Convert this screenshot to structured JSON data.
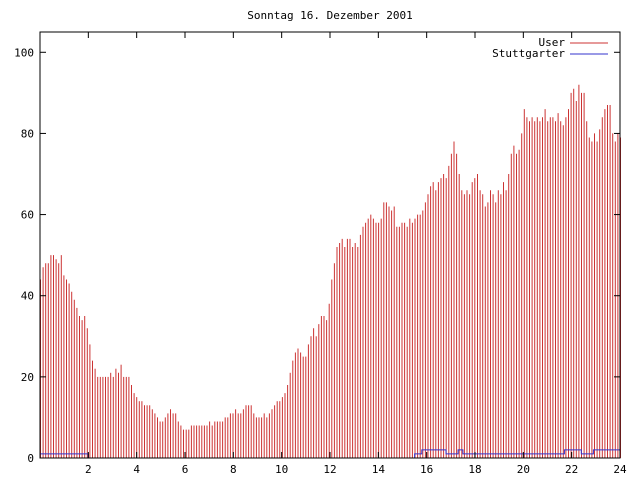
{
  "chart_data": {
    "type": "bar",
    "title": "Sonntag 16. Dezember 2001",
    "xlabel": "",
    "ylabel": "",
    "xlim": [
      0,
      24
    ],
    "ylim": [
      0,
      105
    ],
    "x_ticks": [
      2,
      4,
      6,
      8,
      10,
      12,
      14,
      16,
      18,
      20,
      22,
      24
    ],
    "y_ticks": [
      0,
      20,
      40,
      60,
      80,
      100
    ],
    "grid": false,
    "legend_position": "top-right",
    "colors": {
      "user": "#cc3333",
      "stuttgarter": "#3333cc",
      "axis": "#000000"
    },
    "series": [
      {
        "name": "User",
        "style": "impulses",
        "values": [
          44,
          47,
          48,
          48,
          50,
          50,
          49,
          48,
          50,
          45,
          44,
          43,
          41,
          39,
          37,
          35,
          34,
          35,
          32,
          28,
          24,
          22,
          20,
          20,
          20,
          20,
          20,
          21,
          20,
          22,
          21,
          23,
          20,
          20,
          20,
          18,
          16,
          15,
          14,
          14,
          13,
          13,
          13,
          12,
          11,
          10,
          9,
          9,
          10,
          11,
          12,
          11,
          11,
          9,
          8,
          7,
          7,
          7,
          8,
          8,
          8,
          8,
          8,
          8,
          8,
          9,
          8,
          9,
          9,
          9,
          9,
          10,
          10,
          11,
          11,
          12,
          11,
          11,
          12,
          13,
          13,
          13,
          11,
          10,
          10,
          10,
          11,
          10,
          11,
          12,
          13,
          14,
          14,
          15,
          16,
          18,
          21,
          24,
          26,
          27,
          26,
          25,
          25,
          28,
          30,
          32,
          30,
          33,
          35,
          35,
          34,
          38,
          44,
          48,
          52,
          53,
          54,
          52,
          54,
          54,
          52,
          53,
          52,
          55,
          57,
          58,
          59,
          60,
          59,
          58,
          58,
          59,
          63,
          63,
          62,
          61,
          62,
          57,
          57,
          58,
          58,
          57,
          59,
          58,
          59,
          60,
          60,
          61,
          63,
          65,
          67,
          68,
          66,
          68,
          69,
          70,
          69,
          72,
          75,
          78,
          75,
          70,
          66,
          65,
          66,
          65,
          68,
          69,
          70,
          66,
          65,
          62,
          63,
          66,
          65,
          63,
          66,
          65,
          68,
          66,
          70,
          75,
          77,
          75,
          76,
          80,
          86,
          84,
          83,
          84,
          83,
          84,
          83,
          84,
          86,
          83,
          84,
          84,
          83,
          85,
          83,
          82,
          84,
          86,
          90,
          91,
          88,
          92,
          90,
          90,
          83,
          79,
          78,
          80,
          78,
          81,
          84,
          86,
          87,
          87,
          80,
          78,
          80,
          79
        ]
      },
      {
        "name": "Stuttgarter",
        "style": "steps",
        "points": [
          [
            0,
            1
          ],
          [
            2,
            1
          ],
          [
            2,
            0
          ],
          [
            15.5,
            0
          ],
          [
            15.5,
            1
          ],
          [
            15.8,
            1
          ],
          [
            15.8,
            2
          ],
          [
            16.8,
            2
          ],
          [
            16.8,
            1
          ],
          [
            17.3,
            1
          ],
          [
            17.3,
            2
          ],
          [
            17.5,
            2
          ],
          [
            17.5,
            1
          ],
          [
            21.7,
            1
          ],
          [
            21.7,
            2
          ],
          [
            22.4,
            2
          ],
          [
            22.4,
            1
          ],
          [
            22.9,
            1
          ],
          [
            22.9,
            2
          ],
          [
            24,
            2
          ]
        ]
      }
    ]
  }
}
